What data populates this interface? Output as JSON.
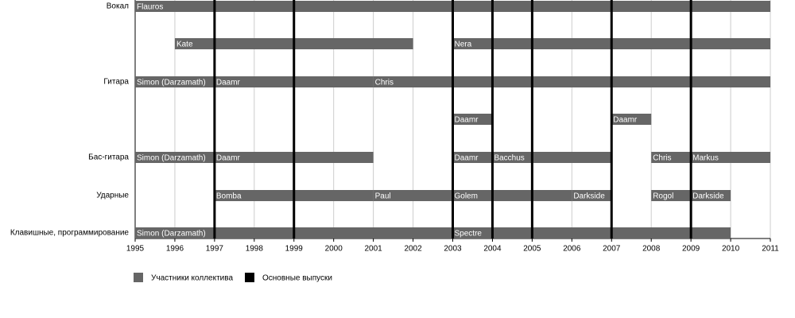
{
  "chart_data": {
    "type": "timeline",
    "categories": [
      "Вокал",
      null,
      "Гитара",
      null,
      "Бас-гитара",
      "Ударные",
      "Клавишные, программирование"
    ],
    "xlim": [
      1995,
      2011
    ],
    "xticks": [
      1995,
      1996,
      1997,
      1998,
      1999,
      2000,
      2001,
      2002,
      2003,
      2004,
      2005,
      2006,
      2007,
      2008,
      2009,
      2010,
      2011
    ],
    "grid": true,
    "series": [
      {
        "name": "Участники коллектива",
        "color": "#666666"
      },
      {
        "name": "Основные выпуски",
        "color": "#000000"
      }
    ],
    "bars": [
      {
        "row": 0,
        "label": "Flauros",
        "start": 1995,
        "end": 2011
      },
      {
        "row": 1,
        "label": "Kate",
        "start": 1996,
        "end": 2002
      },
      {
        "row": 1,
        "label": "Nera",
        "start": 2003,
        "end": 2011
      },
      {
        "row": 2,
        "label": "Simon (Darzamath)",
        "start": 1995,
        "end": 1997
      },
      {
        "row": 2,
        "label": "Daamr",
        "start": 1997,
        "end": 2001
      },
      {
        "row": 2,
        "label": "Chris",
        "start": 2001,
        "end": 2011
      },
      {
        "row": 3,
        "label": "Daamr",
        "start": 2003,
        "end": 2004
      },
      {
        "row": 3,
        "label": "Daamr",
        "start": 2007,
        "end": 2008
      },
      {
        "row": 4,
        "label": "Simon (Darzamath)",
        "start": 1995,
        "end": 1997
      },
      {
        "row": 4,
        "label": "Daamr",
        "start": 1997,
        "end": 2001
      },
      {
        "row": 4,
        "label": "Daamr",
        "start": 2003,
        "end": 2004
      },
      {
        "row": 4,
        "label": "Bacchus",
        "start": 2004,
        "end": 2007
      },
      {
        "row": 4,
        "label": "Chris",
        "start": 2008,
        "end": 2009
      },
      {
        "row": 4,
        "label": "Markus",
        "start": 2009,
        "end": 2011
      },
      {
        "row": 5,
        "label": "Bomba",
        "start": 1997,
        "end": 2001
      },
      {
        "row": 5,
        "label": "Paul",
        "start": 2001,
        "end": 2003
      },
      {
        "row": 5,
        "label": "Golem",
        "start": 2003,
        "end": 2006
      },
      {
        "row": 5,
        "label": "Darkside",
        "start": 2006,
        "end": 2007
      },
      {
        "row": 5,
        "label": "Rogol",
        "start": 2008,
        "end": 2009
      },
      {
        "row": 5,
        "label": "Darkside",
        "start": 2009,
        "end": 2010
      },
      {
        "row": 6,
        "label": "Simon (Darzamath)",
        "start": 1995,
        "end": 2003
      },
      {
        "row": 6,
        "label": "Spectre",
        "start": 2003,
        "end": 2010
      }
    ],
    "releases": [
      1997,
      1999,
      2003,
      2004,
      2005,
      2007,
      2009
    ]
  }
}
